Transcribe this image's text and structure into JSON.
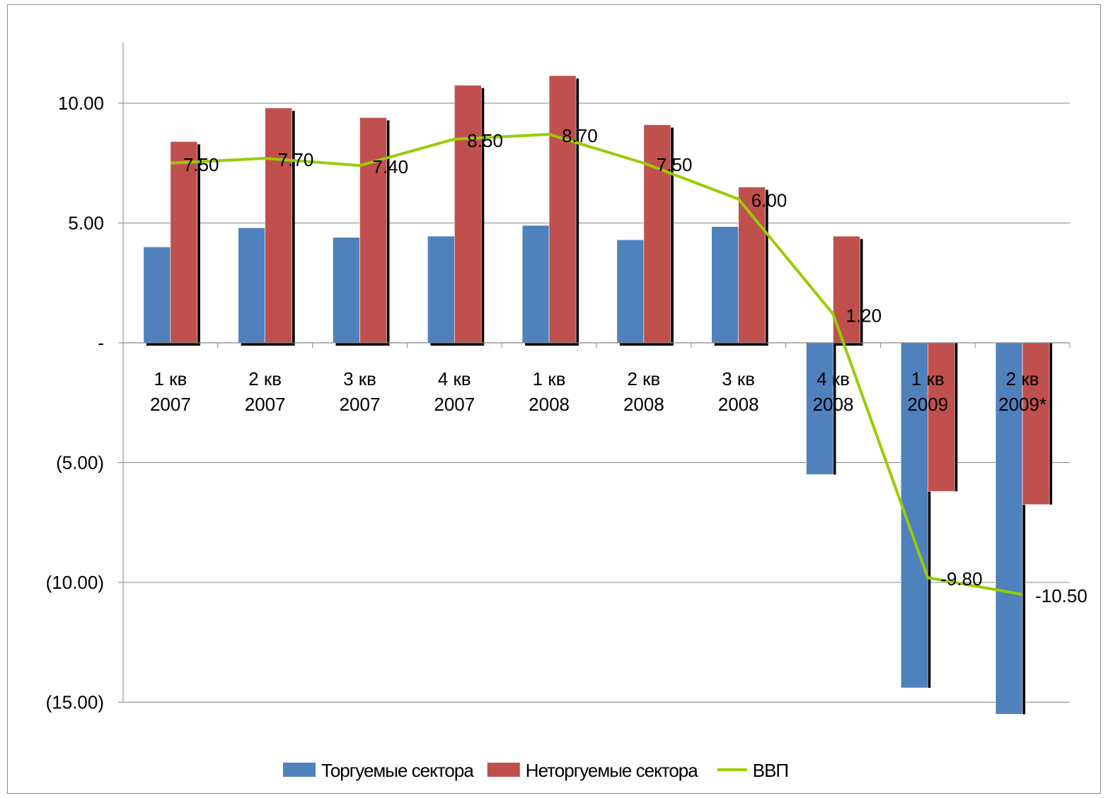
{
  "chart_data": {
    "type": "bar",
    "categories": [
      [
        "1 кв",
        "2007"
      ],
      [
        "2 кв",
        "2007"
      ],
      [
        "3 кв",
        "2007"
      ],
      [
        "4 кв",
        "2007"
      ],
      [
        "1 кв",
        "2008"
      ],
      [
        "2 кв",
        "2008"
      ],
      [
        "3 кв",
        "2008"
      ],
      [
        "4 кв",
        "2008"
      ],
      [
        "1 кв",
        "2009"
      ],
      [
        "2 кв",
        "2009*"
      ]
    ],
    "series": [
      {
        "name": "Торгуемые сектора",
        "kind": "bar",
        "color": "#4F81BD",
        "values": [
          4.0,
          4.8,
          4.4,
          4.45,
          4.9,
          4.3,
          4.85,
          -5.5,
          -14.4,
          -15.5
        ]
      },
      {
        "name": "Неторгуемые сектора",
        "kind": "bar",
        "color": "#C0504D",
        "values": [
          8.4,
          9.8,
          9.4,
          10.75,
          11.15,
          9.1,
          6.5,
          4.45,
          -6.2,
          -6.75
        ]
      },
      {
        "name": "ВВП",
        "kind": "line",
        "color": "#99CC00",
        "values": [
          7.5,
          7.7,
          7.4,
          8.5,
          8.7,
          7.5,
          6.0,
          1.2,
          -9.8,
          -10.5
        ],
        "data_labels": [
          "7.50",
          "7.70",
          "7.40",
          "8.50",
          "8.70",
          "7.50",
          "6.00",
          "1.20",
          "-9.80",
          "-10.50"
        ]
      }
    ],
    "y_ticks": [
      {
        "value": 10,
        "label": "10.00"
      },
      {
        "value": 5,
        "label": "5.00"
      },
      {
        "value": 0,
        "label": "-"
      },
      {
        "value": -5,
        "label": "(5.00)"
      },
      {
        "value": -10,
        "label": "(10.00)"
      },
      {
        "value": -15,
        "label": "(15.00)"
      }
    ],
    "ylim": [
      -15,
      12.5
    ],
    "grid": true,
    "legend_position": "bottom",
    "title": "",
    "xlabel": "",
    "ylabel": ""
  }
}
